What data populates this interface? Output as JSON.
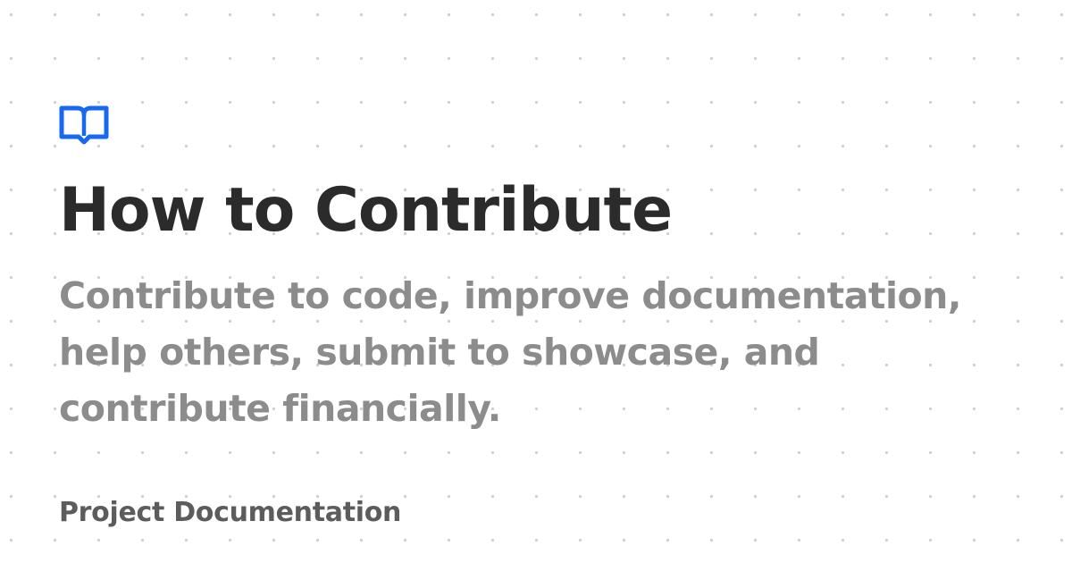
{
  "logo": {
    "icon": "book-open-icon",
    "color": "#1769f0"
  },
  "title": "How to Contribute",
  "description": "Contribute to code, improve documentation, help others, submit to showcase, and contribute financially.",
  "site_name": "Project Documentation",
  "colors": {
    "title": "#2b2b2b",
    "description": "#8c8c8c",
    "site_name": "#5c5c5c",
    "background": "#ffffff",
    "dots": "#cfcfcf"
  }
}
